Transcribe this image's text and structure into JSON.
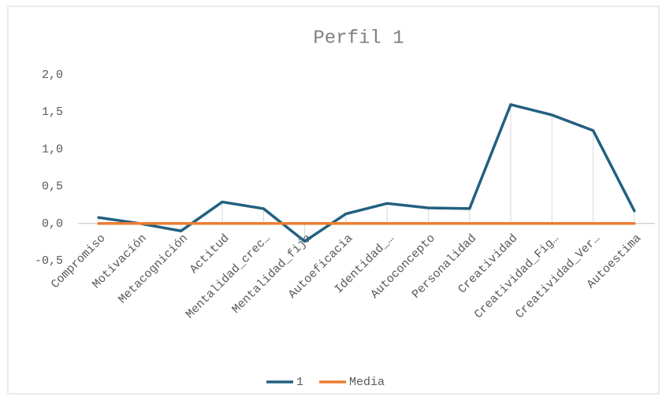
{
  "chart_data": {
    "type": "line",
    "title": "Perfil 1",
    "categories": [
      "Compromiso",
      "Motivación",
      "Metacognición",
      "Actitud",
      "Mentalidad_crec…",
      "Mentalidad_fija",
      "Autoeficacia",
      "Identidad_…",
      "Autoconcepto",
      "Personalidad",
      "Creatividad",
      "Creatividad_Fig…",
      "Creatividad_Ver…",
      "Autoestima"
    ],
    "series": [
      {
        "name": "1",
        "color": "#22607f",
        "values": [
          0.08,
          0,
          -0.1,
          0.29,
          0.2,
          -0.24,
          0.13,
          0.27,
          0.21,
          0.2,
          1.6,
          1.46,
          1.25,
          0.17
        ]
      },
      {
        "name": "Media",
        "color": "#ed7d31",
        "values": [
          0,
          0,
          0,
          0,
          0,
          0,
          0,
          0,
          0,
          0,
          0,
          0,
          0,
          0
        ]
      }
    ],
    "ylim": [
      -0.5,
      2.0
    ],
    "yticks": [
      {
        "value": -0.5,
        "label": "-0,5"
      },
      {
        "value": 0,
        "label": "0,0"
      },
      {
        "value": 0.5,
        "label": "0,5"
      },
      {
        "value": 1,
        "label": "1,0"
      },
      {
        "value": 1.5,
        "label": "1,5"
      },
      {
        "value": 2,
        "label": "2,0"
      }
    ],
    "drop_lines": true,
    "grid": false,
    "legend": "bottom"
  }
}
